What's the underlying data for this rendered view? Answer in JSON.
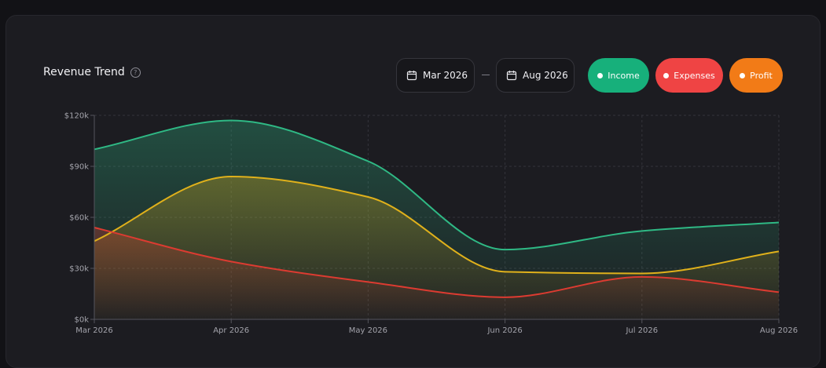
{
  "header": {
    "title": "Revenue Trend",
    "help_icon": "question-circle-icon"
  },
  "date_range": {
    "start": "Mar 2026",
    "end": "Aug 2026",
    "icon": "calendar-icon"
  },
  "legend": [
    {
      "label": "Income",
      "color": "#17b07b",
      "icon": "dot"
    },
    {
      "label": "Expenses",
      "color": "#ef4444",
      "icon": "dot"
    },
    {
      "label": "Profit",
      "color": "#f27b17",
      "icon": "dot"
    }
  ],
  "chart_data": {
    "type": "area",
    "x": [
      "Mar 2026",
      "Apr 2026",
      "May 2026",
      "Jun 2026",
      "Jul 2026",
      "Aug 2026"
    ],
    "series": [
      {
        "name": "Income",
        "color": "#2fb985",
        "values": [
          100000,
          117000,
          93000,
          41000,
          52000,
          57000
        ]
      },
      {
        "name": "Expenses",
        "color": "#dc3b31",
        "values": [
          54000,
          34000,
          22000,
          13000,
          25000,
          16000
        ]
      },
      {
        "name": "Profit",
        "color": "#e0b11b",
        "values": [
          46000,
          84000,
          72000,
          28000,
          27000,
          40000
        ]
      }
    ],
    "y_ticks": [
      "$0k",
      "$30k",
      "$60k",
      "$90k",
      "$120k"
    ],
    "y_tick_values": [
      0,
      30000,
      60000,
      90000,
      120000
    ],
    "ylim": [
      0,
      120000
    ],
    "grid": true
  }
}
